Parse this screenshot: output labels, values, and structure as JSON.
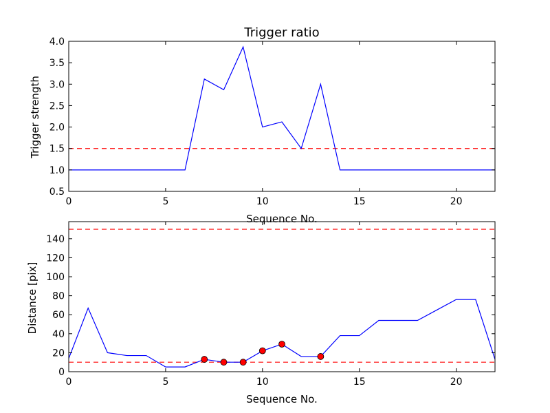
{
  "chart_data": [
    {
      "type": "line",
      "title": "Trigger ratio",
      "xlabel": "Sequence No.",
      "ylabel": "Trigger strength",
      "xlim": [
        0,
        22
      ],
      "ylim": [
        0.5,
        4.0
      ],
      "xticks": [
        0,
        5,
        10,
        15,
        20
      ],
      "yticks": [
        0.5,
        1.0,
        1.5,
        2.0,
        2.5,
        3.0,
        3.5,
        4.0
      ],
      "xtick_labels": [
        "0",
        "5",
        "10",
        "15",
        "20"
      ],
      "ytick_labels": [
        "0.5",
        "1.0",
        "1.5",
        "2.0",
        "2.5",
        "3.0",
        "3.5",
        "4.0"
      ],
      "grid": false,
      "series_color": "#0000ff",
      "reference_color": "#ff0000",
      "series": [
        {
          "x": [
            0,
            1,
            2,
            3,
            4,
            5,
            6,
            7,
            8,
            9,
            10,
            11,
            12,
            13,
            14,
            15,
            16,
            17,
            18,
            19,
            20,
            21,
            22
          ],
          "values": [
            1.0,
            1.0,
            1.0,
            1.0,
            1.0,
            1.0,
            1.0,
            3.12,
            2.87,
            3.87,
            2.0,
            2.12,
            1.5,
            3.0,
            1.0,
            1.0,
            1.0,
            1.0,
            1.0,
            1.0,
            1.0,
            1.0,
            1.0
          ]
        }
      ],
      "reference_lines": [
        1.5
      ]
    },
    {
      "type": "line",
      "title": "",
      "xlabel": "Sequence No.",
      "ylabel": "Distance [pix]",
      "xlim": [
        0,
        22
      ],
      "ylim": [
        0,
        158
      ],
      "xticks": [
        0,
        5,
        10,
        15,
        20
      ],
      "yticks": [
        0,
        20,
        40,
        60,
        80,
        100,
        120,
        140
      ],
      "xtick_labels": [
        "0",
        "5",
        "10",
        "15",
        "20"
      ],
      "ytick_labels": [
        "0",
        "20",
        "40",
        "60",
        "80",
        "100",
        "120",
        "140"
      ],
      "grid": false,
      "series_color": "#0000ff",
      "reference_color": "#ff0000",
      "marker_color": "#ff0000",
      "series": [
        {
          "x": [
            0,
            1,
            2,
            3,
            4,
            5,
            6,
            7,
            8,
            9,
            10,
            11,
            12,
            13,
            14,
            15,
            16,
            17,
            18,
            19,
            20,
            21,
            22
          ],
          "values": [
            14,
            67,
            20,
            17,
            17,
            5,
            5,
            13,
            10,
            10,
            22,
            29,
            16,
            16,
            38,
            38,
            54,
            54,
            54,
            65,
            76,
            76,
            13
          ]
        }
      ],
      "highlighted_points": {
        "x": [
          7,
          8,
          9,
          10,
          11,
          13
        ],
        "values": [
          13,
          10,
          10,
          22,
          29,
          16
        ]
      },
      "reference_lines": [
        10,
        150
      ]
    }
  ]
}
